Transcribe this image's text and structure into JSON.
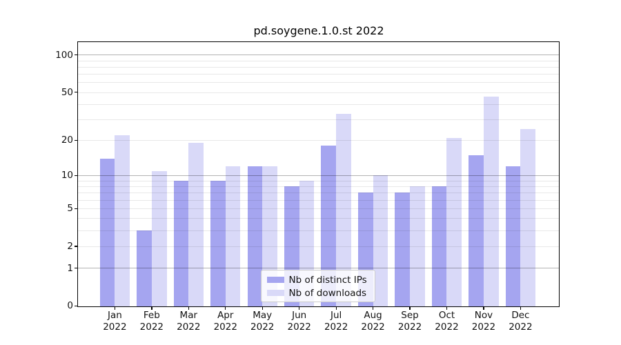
{
  "chart_data": {
    "type": "bar",
    "title": "pd.soygene.1.0.st 2022",
    "categories": [
      "Jan",
      "Feb",
      "Mar",
      "Apr",
      "May",
      "Jun",
      "Jul",
      "Aug",
      "Sep",
      "Oct",
      "Nov",
      "Dec"
    ],
    "x_tick_second_line": "2022",
    "series": [
      {
        "name": "Nb of distinct IPs",
        "color": "#a5a5f0",
        "values": [
          14,
          3,
          9,
          9,
          12,
          8,
          18,
          7,
          7,
          8,
          15,
          12
        ]
      },
      {
        "name": "Nb of downloads",
        "color": "#d9d9f8",
        "values": [
          22,
          11,
          19,
          12,
          12,
          9,
          33,
          10,
          8,
          21,
          46,
          25
        ]
      }
    ],
    "yscale": "log1p",
    "ylim": [
      0,
      127
    ],
    "y_tick_values": [
      0,
      1,
      2,
      5,
      10,
      20,
      50,
      100
    ],
    "y_major_grid_values": [
      1,
      10,
      100
    ],
    "y_minor_grid_values": [
      2,
      3,
      4,
      5,
      6,
      7,
      8,
      9,
      20,
      30,
      40,
      50,
      60,
      70,
      80,
      90
    ],
    "grid": true,
    "legend_position": "lower center",
    "background_color": "#ffffff",
    "axis_text_color": "#111111"
  }
}
